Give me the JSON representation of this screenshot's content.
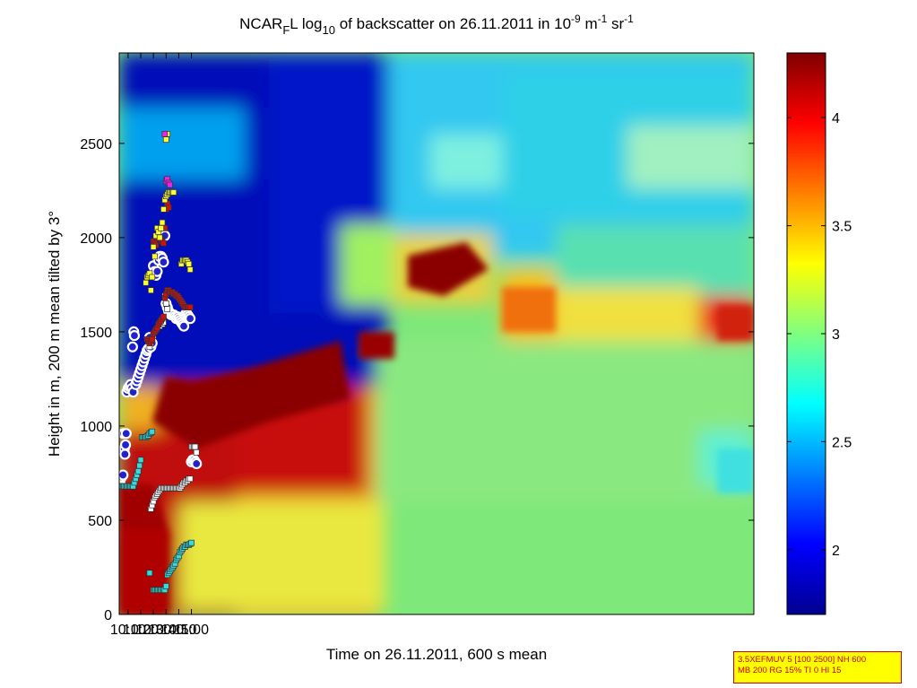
{
  "chart_data": {
    "type": "heatmap",
    "title": {
      "prefix": "NCAR",
      "prefix_sub": "F",
      "after_prefix": "L log",
      "log_sub": "10",
      "main": " of backscatter on 26.11.2011 in 10",
      "exp1": "-9",
      "unit1": " m",
      "exp2": "-1",
      "unit2": " sr",
      "exp3": "-1"
    },
    "xlabel": "Time on 26.11.2011, 600 s mean",
    "ylabel": "Height in m, 200 m mean tilted by 3°",
    "x_range_minutes": [
      603,
      1104
    ],
    "y_range": [
      0,
      2980
    ],
    "x_ticks": [
      {
        "label": "10:10",
        "minute": 610
      },
      {
        "label": "10:20",
        "minute": 620
      },
      {
        "label": "10:30",
        "minute": 630
      },
      {
        "label": "10:40",
        "minute": 640
      },
      {
        "label": "10:50",
        "minute": 650
      },
      {
        "label": "11:00",
        "minute": 660
      }
    ],
    "y_ticks": [
      0,
      500,
      1000,
      1500,
      2000,
      2500
    ],
    "colorbar": {
      "range": [
        1.7,
        4.3
      ],
      "ticks": [
        2,
        2.5,
        3,
        3.5,
        4
      ],
      "colormap": "jet"
    },
    "markers": [
      {
        "name": "blue circles",
        "color": "#2222cc",
        "edge": "#ffffff",
        "points": [
          [
            603.5,
            700
          ],
          [
            604,
            720
          ],
          [
            605,
            730
          ],
          [
            606,
            740
          ],
          [
            606.5,
            960
          ],
          [
            607,
            880
          ],
          [
            607.5,
            850
          ],
          [
            608,
            900
          ],
          [
            608.5,
            960
          ],
          [
            609,
            1180
          ],
          [
            610,
            1200
          ],
          [
            611,
            1210
          ],
          [
            612,
            1220
          ],
          [
            613,
            1200
          ],
          [
            613.5,
            1420
          ],
          [
            614,
            1180
          ],
          [
            614.5,
            1500
          ],
          [
            615,
            1480
          ],
          [
            616,
            1220
          ],
          [
            617,
            1240
          ],
          [
            618,
            1260
          ],
          [
            619,
            1280
          ],
          [
            620,
            1300
          ],
          [
            621,
            1320
          ],
          [
            622,
            1340
          ],
          [
            623,
            1360
          ],
          [
            624,
            1380
          ],
          [
            625,
            1400
          ],
          [
            626,
            1410
          ],
          [
            627,
            1470
          ],
          [
            628,
            1420
          ],
          [
            629,
            1440
          ],
          [
            630,
            1850
          ],
          [
            631,
            1820
          ],
          [
            632,
            1800
          ],
          [
            633,
            1820
          ],
          [
            634,
            1880
          ],
          [
            635,
            1900
          ],
          [
            636,
            1900
          ],
          [
            637,
            1890
          ],
          [
            638,
            1870
          ],
          [
            639,
            2010
          ],
          [
            640,
            1650
          ],
          [
            641,
            1630
          ],
          [
            642,
            1610
          ],
          [
            643,
            1600
          ],
          [
            644,
            1590
          ],
          [
            645,
            1590
          ],
          [
            646,
            1590
          ],
          [
            647,
            1580
          ],
          [
            648,
            1570
          ],
          [
            649,
            1580
          ],
          [
            650,
            1570
          ],
          [
            651,
            1560
          ],
          [
            652,
            1550
          ],
          [
            653,
            1540
          ],
          [
            654,
            1530
          ],
          [
            655,
            1590
          ],
          [
            656,
            1600
          ],
          [
            657,
            1590
          ],
          [
            658,
            1580
          ],
          [
            659,
            1570
          ],
          [
            660,
            810
          ],
          [
            661,
            820
          ],
          [
            662,
            820
          ],
          [
            663,
            810
          ],
          [
            664,
            800
          ]
        ]
      },
      {
        "name": "cyan squares",
        "color": "#33dddd",
        "edge": "#333333",
        "points": [
          [
            603,
            680
          ],
          [
            604,
            680
          ],
          [
            605,
            680
          ],
          [
            606,
            680
          ],
          [
            607,
            680
          ],
          [
            608,
            680
          ],
          [
            609,
            680
          ],
          [
            610,
            680
          ],
          [
            611,
            680
          ],
          [
            612,
            680
          ],
          [
            613,
            680
          ],
          [
            614,
            680
          ],
          [
            615,
            700
          ],
          [
            616,
            720
          ],
          [
            617,
            740
          ],
          [
            618,
            760
          ],
          [
            619,
            790
          ],
          [
            620,
            820
          ],
          [
            621,
            940
          ],
          [
            622,
            940
          ],
          [
            623,
            940
          ],
          [
            624,
            940
          ],
          [
            625,
            945
          ],
          [
            626,
            950
          ],
          [
            627,
            960
          ],
          [
            628,
            965
          ],
          [
            629,
            970
          ],
          [
            626.5,
            220
          ],
          [
            627,
            220
          ],
          [
            630,
            130
          ],
          [
            631,
            130
          ],
          [
            632,
            130
          ],
          [
            633,
            130
          ],
          [
            634,
            130
          ],
          [
            635,
            130
          ],
          [
            636,
            130
          ],
          [
            637,
            130
          ],
          [
            638,
            130
          ],
          [
            639,
            130
          ],
          [
            640,
            150
          ],
          [
            641,
            210
          ],
          [
            642,
            220
          ],
          [
            643,
            230
          ],
          [
            644,
            240
          ],
          [
            645,
            250
          ],
          [
            646,
            260
          ],
          [
            647,
            270
          ],
          [
            648,
            290
          ],
          [
            649,
            300
          ],
          [
            650,
            310
          ],
          [
            651,
            330
          ],
          [
            652,
            340
          ],
          [
            653,
            350
          ],
          [
            654,
            360
          ],
          [
            655,
            360
          ],
          [
            656,
            370
          ],
          [
            657,
            370
          ],
          [
            658,
            370
          ],
          [
            659,
            375
          ],
          [
            660,
            380
          ]
        ]
      },
      {
        "name": "white squares",
        "color": "#ffffff",
        "edge": "#333333",
        "points": [
          [
            628,
            560
          ],
          [
            629,
            580
          ],
          [
            630,
            600
          ],
          [
            631,
            620
          ],
          [
            632,
            630
          ],
          [
            633,
            640
          ],
          [
            634,
            650
          ],
          [
            635,
            660
          ],
          [
            636,
            670
          ],
          [
            637,
            670
          ],
          [
            638,
            670
          ],
          [
            639,
            670
          ],
          [
            640,
            670
          ],
          [
            641,
            670
          ],
          [
            642,
            670
          ],
          [
            643,
            670
          ],
          [
            644,
            670
          ],
          [
            645,
            670
          ],
          [
            646,
            670
          ],
          [
            647,
            670
          ],
          [
            648,
            670
          ],
          [
            649,
            670
          ],
          [
            650,
            670
          ],
          [
            651,
            670
          ],
          [
            652,
            680
          ],
          [
            653,
            690
          ],
          [
            654,
            700
          ],
          [
            655,
            700
          ],
          [
            656,
            710
          ],
          [
            657,
            710
          ],
          [
            658,
            720
          ],
          [
            659,
            720
          ],
          [
            660,
            890
          ],
          [
            661,
            890
          ],
          [
            662,
            890
          ],
          [
            663,
            890
          ],
          [
            664,
            860
          ],
          [
            627,
            1420
          ],
          [
            628,
            1440
          ],
          [
            629,
            1460
          ],
          [
            630,
            1480
          ],
          [
            631,
            1500
          ],
          [
            632,
            1510
          ],
          [
            633,
            1520
          ],
          [
            634,
            1530
          ],
          [
            635,
            1530
          ],
          [
            636,
            1540
          ],
          [
            637,
            1540
          ],
          [
            638,
            1550
          ],
          [
            639,
            1690
          ],
          [
            640,
            1650
          ],
          [
            641,
            1620
          ]
        ]
      },
      {
        "name": "red squares",
        "color": "#cc1111",
        "edge": "#333333",
        "points": [
          [
            625,
            1460
          ],
          [
            626,
            1450
          ],
          [
            627,
            1440
          ],
          [
            628,
            1450
          ],
          [
            629,
            1460
          ],
          [
            630,
            1490
          ],
          [
            631,
            1500
          ],
          [
            632,
            1510
          ],
          [
            633,
            1520
          ],
          [
            634,
            1540
          ],
          [
            635,
            1550
          ],
          [
            636,
            1560
          ],
          [
            637,
            1570
          ],
          [
            638,
            1580
          ],
          [
            639,
            1680
          ],
          [
            640,
            1700
          ],
          [
            641,
            1720
          ],
          [
            642,
            1720
          ],
          [
            643,
            1710
          ],
          [
            644,
            1710
          ],
          [
            645,
            1710
          ],
          [
            646,
            1700
          ],
          [
            647,
            1700
          ],
          [
            648,
            1690
          ],
          [
            649,
            1690
          ],
          [
            650,
            1680
          ],
          [
            651,
            1670
          ],
          [
            652,
            1660
          ],
          [
            653,
            1650
          ],
          [
            654,
            1640
          ],
          [
            655,
            1630
          ],
          [
            656,
            1630
          ],
          [
            657,
            1630
          ],
          [
            658,
            1630
          ],
          [
            659,
            1630
          ],
          [
            630,
            1980
          ],
          [
            631,
            1970
          ],
          [
            632,
            1960
          ],
          [
            633,
            2000
          ],
          [
            634,
            2010
          ],
          [
            635,
            2000
          ],
          [
            636,
            1990
          ],
          [
            637,
            1980
          ],
          [
            638,
            1970
          ],
          [
            639,
            2050
          ],
          [
            640,
            2150
          ],
          [
            641,
            2180
          ],
          [
            642,
            2160
          ]
        ]
      },
      {
        "name": "yellow squares",
        "color": "#ffff33",
        "edge": "#333333",
        "points": [
          [
            624,
            1760
          ],
          [
            625,
            1790
          ],
          [
            626,
            1800
          ],
          [
            627,
            1810
          ],
          [
            628,
            1720
          ],
          [
            629,
            1790
          ],
          [
            630,
            1950
          ],
          [
            631,
            1900
          ],
          [
            632,
            2010
          ],
          [
            633,
            2050
          ],
          [
            634,
            2030
          ],
          [
            635,
            2000
          ],
          [
            636,
            2050
          ],
          [
            637,
            2080
          ],
          [
            638,
            2150
          ],
          [
            639,
            2200
          ],
          [
            640,
            2220
          ],
          [
            641,
            2230
          ],
          [
            642,
            2240
          ],
          [
            643,
            2240
          ],
          [
            644,
            2240
          ],
          [
            645,
            2240
          ],
          [
            646,
            2240
          ],
          [
            652,
            1860
          ],
          [
            653,
            1880
          ],
          [
            654,
            1880
          ],
          [
            655,
            1880
          ],
          [
            656,
            1880
          ],
          [
            657,
            1870
          ],
          [
            658,
            1860
          ],
          [
            659,
            1830
          ],
          [
            640,
            2520
          ],
          [
            641,
            2550
          ]
        ]
      },
      {
        "name": "magenta squares",
        "color": "#ee22ee",
        "edge": "#333333",
        "points": [
          [
            639,
            2550
          ],
          [
            640,
            2300
          ],
          [
            641,
            2310
          ],
          [
            642,
            2290
          ],
          [
            643,
            2280
          ]
        ]
      }
    ]
  },
  "info_box": {
    "line1": "3.5XEFMUV 5 [100 2500] NH 600",
    "line2": "MB 200 RG 15% TI 0 HI 15"
  }
}
